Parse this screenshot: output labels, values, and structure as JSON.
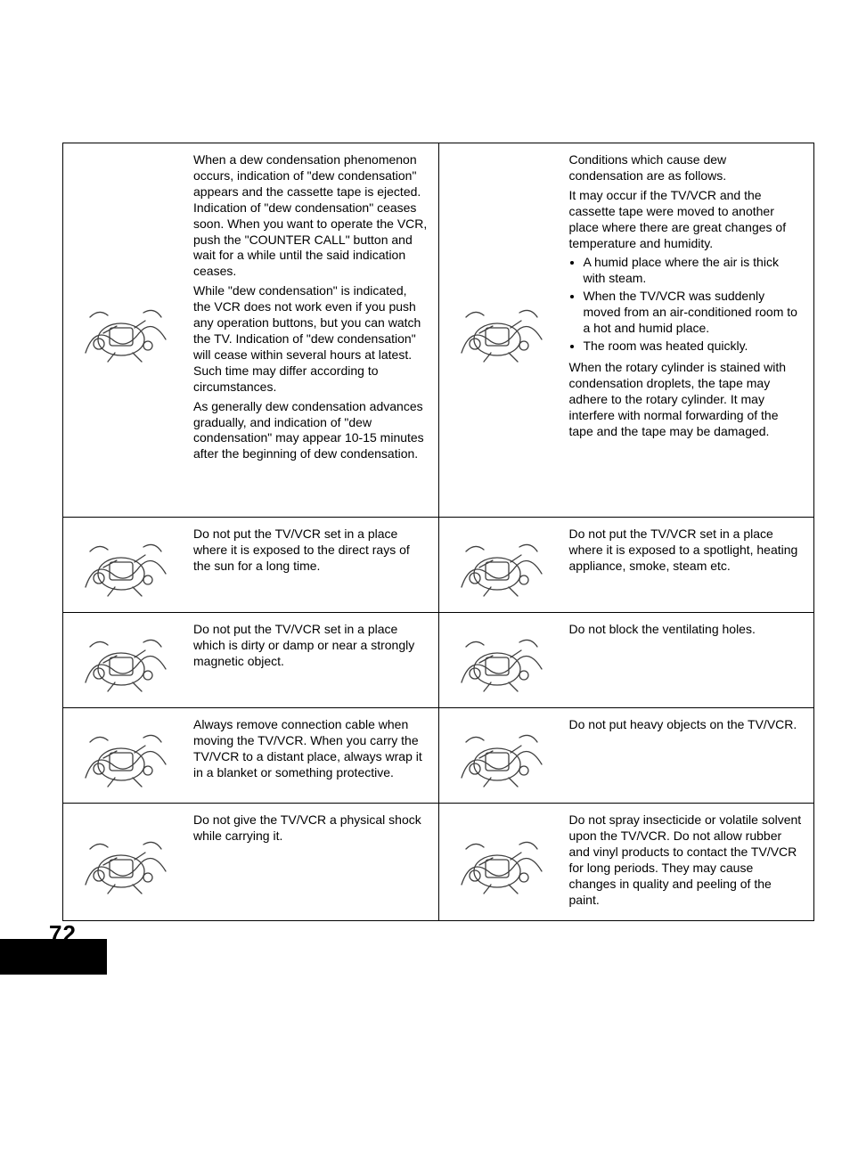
{
  "page_number": "72",
  "rows": [
    {
      "left_text": "When a dew condensation phenomenon occurs, indication of \"dew condensation\" appears and the cassette tape is ejected. Indication of \"dew condensation\" ceases soon. When you want to operate the VCR, push the \"COUNTER CALL\" button and wait for a while until the said indication ceases.\nWhile \"dew condensation\" is indicated, the VCR does not work even if you push any operation buttons, but you can watch the TV. Indication of \"dew condensation\" will cease within several hours at latest. Such time may differ according to circumstances.\nAs generally dew condensation advances gradually, and indication of \"dew condensation\" may appear 10-15 minutes after the beginning of dew condensation.",
      "right_intro": "Conditions which cause dew condensation are as follows.\nIt may occur if the TV/VCR and the cassette tape were moved to another place where there are great changes of temperature and humidity.",
      "right_bullets": [
        "A humid place where the air is thick with steam.",
        "When the TV/VCR was suddenly moved from an air-conditioned room to a hot and humid place.",
        "The room was heated quickly."
      ],
      "right_after": "When the rotary cylinder is stained with condensation droplets, the tape may adhere to the rotary cylinder. It may interfere with normal forwarding of the tape and the tape may be damaged.",
      "left_icon": "dew-stop-icon",
      "right_icon": "condensation-icon",
      "tall": true
    },
    {
      "left_text": "Do not put the TV/VCR set in a place where it is exposed to the direct rays of the sun for a long time.",
      "right_text": "Do not put the TV/VCR set in a place where it is exposed to a spotlight, heating appliance, smoke, steam etc.",
      "left_icon": "sun-icon",
      "right_icon": "heater-smoke-icon"
    },
    {
      "left_text": "Do not put the TV/VCR set in a place which is dirty or damp or near a strongly magnetic object.",
      "right_text": "Do not block the ventilating holes.",
      "left_icon": "magnet-dirt-icon",
      "right_icon": "ventilation-icon"
    },
    {
      "left_text": "Always remove connection cable when moving the TV/VCR. When you carry the TV/VCR to a distant place, always wrap it in a blanket or something protective.",
      "right_text": "Do not put heavy objects on the TV/VCR.",
      "left_icon": "carry-cable-icon",
      "right_icon": "heavy-object-icon"
    },
    {
      "left_text": "Do not give the TV/VCR a physical shock while carrying it.",
      "right_text": "Do not spray insecticide or volatile solvent upon the TV/VCR. Do not allow rubber and vinyl products to contact the TV/VCR for long periods. They may cause changes in quality and peeling of the paint.",
      "left_icon": "shock-icon",
      "right_icon": "spray-icon"
    }
  ]
}
